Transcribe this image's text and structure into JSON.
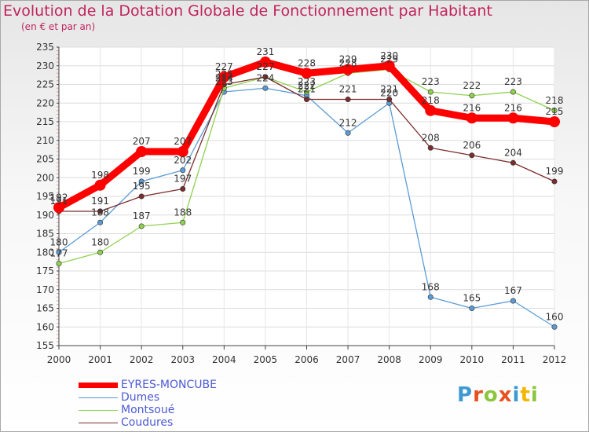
{
  "title": "Evolution de la Dotation Globale de Fonctionnement par Habitant",
  "subtitle": "(en € et par an)",
  "logo": {
    "text": "Proxiti",
    "letter_colors": [
      "#3d9ad1",
      "#e8501f",
      "#8cc63f",
      "#e8501f",
      "#3d9ad1",
      "#f4b400",
      "#8cc63f"
    ]
  },
  "chart_data": {
    "type": "line",
    "title": "Evolution de la Dotation Globale de Fonctionnement par Habitant",
    "subtitle": "(en € et par an)",
    "x": [
      "2000",
      "2001",
      "2002",
      "2003",
      "2004",
      "2005",
      "2006",
      "2007",
      "2008",
      "2009",
      "2010",
      "2011",
      "2012"
    ],
    "ylim": [
      155,
      235
    ],
    "yticks": [
      155,
      160,
      165,
      170,
      175,
      180,
      185,
      190,
      195,
      200,
      205,
      210,
      215,
      220,
      225,
      230,
      235
    ],
    "grid": true,
    "series": [
      {
        "name": "EYRES-MONCUBE",
        "color": "#ff0000",
        "values": [
          192,
          198,
          207,
          207,
          227,
          231,
          228,
          229,
          230,
          218,
          216,
          216,
          215
        ]
      },
      {
        "name": "Dumes",
        "color": "#5b9bd5",
        "values": [
          180,
          188,
          199,
          202,
          223,
          224,
          222,
          212,
          220,
          168,
          165,
          167,
          160
        ]
      },
      {
        "name": "Montsoué",
        "color": "#8fd14f",
        "values": [
          177,
          180,
          187,
          188,
          224,
          227,
          223,
          228,
          229,
          223,
          222,
          223,
          218
        ]
      },
      {
        "name": "Coudures",
        "color": "#7b2d2d",
        "values": [
          191,
          191,
          195,
          197,
          225,
          227,
          221,
          221,
          221,
          208,
          206,
          204,
          199
        ]
      }
    ]
  }
}
